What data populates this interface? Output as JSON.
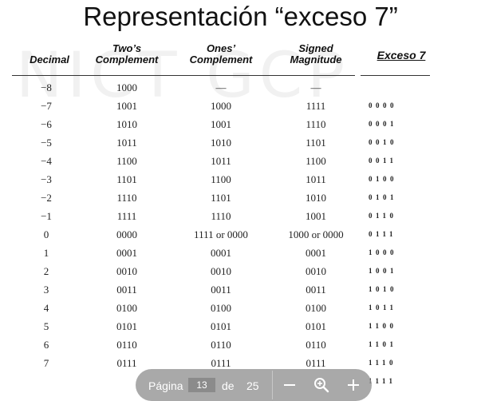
{
  "title": "Representación “exceso 7”",
  "watermark_text": "NICT GCP",
  "table": {
    "headers": {
      "decimal": [
        "Decimal"
      ],
      "twos": [
        "Two’s",
        "Complement"
      ],
      "ones": [
        "Ones’",
        "Complement"
      ],
      "signed": [
        "Signed",
        "Magnitude"
      ],
      "exceso": [
        "Exceso 7"
      ]
    },
    "rows": [
      {
        "decimal": "−8",
        "twos": "1000",
        "ones": "—",
        "signed": "—",
        "exceso": ""
      },
      {
        "decimal": "−7",
        "twos": "1001",
        "ones": "1000",
        "signed": "1111",
        "exceso": "0000"
      },
      {
        "decimal": "−6",
        "twos": "1010",
        "ones": "1001",
        "signed": "1110",
        "exceso": "0001"
      },
      {
        "decimal": "−5",
        "twos": "1011",
        "ones": "1010",
        "signed": "1101",
        "exceso": "0010"
      },
      {
        "decimal": "−4",
        "twos": "1100",
        "ones": "1011",
        "signed": "1100",
        "exceso": "0011"
      },
      {
        "decimal": "−3",
        "twos": "1101",
        "ones": "1100",
        "signed": "1011",
        "exceso": "0100"
      },
      {
        "decimal": "−2",
        "twos": "1110",
        "ones": "1101",
        "signed": "1010",
        "exceso": "0101"
      },
      {
        "decimal": "−1",
        "twos": "1111",
        "ones": "1110",
        "signed": "1001",
        "exceso": "0110"
      },
      {
        "decimal": "0",
        "twos": "0000",
        "ones": "1111 or 0000",
        "signed": "1000 or 0000",
        "exceso": "0111"
      },
      {
        "decimal": "1",
        "twos": "0001",
        "ones": "0001",
        "signed": "0001",
        "exceso": "1000"
      },
      {
        "decimal": "2",
        "twos": "0010",
        "ones": "0010",
        "signed": "0010",
        "exceso": "1001"
      },
      {
        "decimal": "3",
        "twos": "0011",
        "ones": "0011",
        "signed": "0011",
        "exceso": "1010"
      },
      {
        "decimal": "4",
        "twos": "0100",
        "ones": "0100",
        "signed": "0100",
        "exceso": "1011"
      },
      {
        "decimal": "5",
        "twos": "0101",
        "ones": "0101",
        "signed": "0101",
        "exceso": "1100"
      },
      {
        "decimal": "6",
        "twos": "0110",
        "ones": "0110",
        "signed": "0110",
        "exceso": "1101"
      },
      {
        "decimal": "7",
        "twos": "0111",
        "ones": "0111",
        "signed": "0111",
        "exceso": "1110"
      },
      {
        "decimal": "",
        "twos": "",
        "ones": "",
        "signed": "",
        "exceso": "1111"
      }
    ]
  },
  "pager": {
    "page_label": "Página",
    "current_page": "13",
    "of_label": "de",
    "total_pages": "25",
    "icons": [
      "minus-icon",
      "zoom-icon",
      "plus-icon"
    ],
    "background_color": "#969696"
  }
}
